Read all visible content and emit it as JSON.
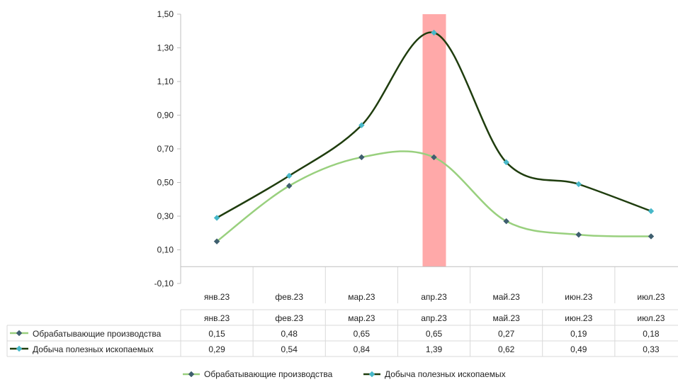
{
  "chart_data": {
    "type": "line",
    "title": "",
    "xlabel": "",
    "ylabel": "",
    "categories": [
      "янв.23",
      "фев.23",
      "мар.23",
      "апр.23",
      "май.23",
      "июн.23",
      "июл.23"
    ],
    "ylim": [
      -0.1,
      1.5
    ],
    "y_ticks": [
      "1,50",
      "1,30",
      "1,10",
      "0,90",
      "0,70",
      "0,50",
      "0,30",
      "0,10",
      "-0,10"
    ],
    "y_tick_values": [
      1.5,
      1.3,
      1.1,
      0.9,
      0.7,
      0.5,
      0.3,
      0.1,
      -0.1
    ],
    "grid": "vertical",
    "highlight_category": "апр.23",
    "highlight_color": "#ff9a9a",
    "legend_position": "bottom",
    "series": [
      {
        "name": "Обрабатывающие производства",
        "color": "#99d07e",
        "marker_color": "#3f5f6f",
        "values": [
          0.15,
          0.48,
          0.65,
          0.65,
          0.27,
          0.19,
          0.18
        ],
        "labels": [
          "0,15",
          "0,48",
          "0,65",
          "0,65",
          "0,27",
          "0,19",
          "0,18"
        ]
      },
      {
        "name": "Добыча полезных ископаемых",
        "color": "#1f3d0e",
        "marker_color": "#47b8c9",
        "values": [
          0.29,
          0.54,
          0.84,
          1.39,
          0.62,
          0.49,
          0.33
        ],
        "labels": [
          "0,29",
          "0,54",
          "0,84",
          "1,39",
          "0,62",
          "0,49",
          "0,33"
        ]
      }
    ]
  }
}
